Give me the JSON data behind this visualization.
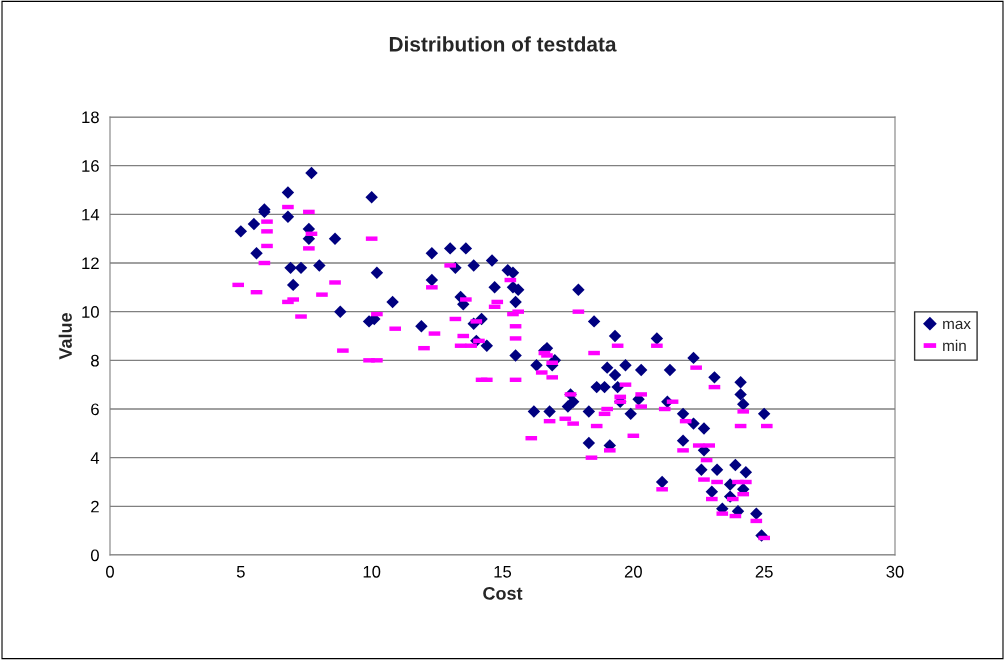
{
  "chart_data": {
    "type": "scatter",
    "title": "Distribution of testdata",
    "xlabel": "Cost",
    "ylabel": "Value",
    "xlim": [
      0,
      30
    ],
    "xticks": [
      0,
      5,
      10,
      15,
      20,
      25,
      30
    ],
    "ylim": [
      0,
      18
    ],
    "yticks": [
      0,
      2,
      4,
      6,
      8,
      10,
      12,
      14,
      16,
      18
    ],
    "grid": "y",
    "legend": "right",
    "series": [
      {
        "name": "max",
        "color": "#000080",
        "marker": "diamond",
        "x": [
          5.0,
          5.5,
          5.6,
          5.9,
          5.9,
          6.8,
          6.8,
          6.9,
          7.0,
          7.3,
          7.6,
          7.6,
          7.7,
          8.0,
          8.6,
          8.8,
          9.9,
          10.0,
          10.1,
          10.2,
          10.8,
          11.9,
          12.3,
          12.3,
          13.0,
          13.2,
          13.4,
          13.5,
          13.6,
          13.9,
          13.9,
          14.0,
          14.2,
          14.4,
          14.6,
          14.7,
          15.2,
          15.4,
          15.4,
          15.5,
          15.6,
          15.5,
          16.2,
          16.3,
          16.6,
          16.7,
          16.8,
          16.9,
          17.0,
          17.5,
          17.6,
          17.7,
          17.9,
          18.3,
          18.3,
          18.5,
          18.6,
          18.9,
          19.0,
          19.1,
          19.3,
          19.3,
          19.4,
          19.5,
          19.7,
          19.9,
          20.2,
          20.3,
          20.9,
          21.1,
          21.3,
          21.4,
          21.9,
          21.9,
          22.3,
          22.3,
          22.6,
          22.7,
          22.7,
          23.0,
          23.1,
          23.2,
          23.4,
          23.7,
          23.7,
          23.9,
          24.0,
          24.1,
          24.1,
          24.2,
          24.2,
          24.3,
          24.7,
          24.9,
          25.0
        ],
        "values": [
          13.3,
          13.6,
          12.4,
          14.1,
          14.2,
          13.9,
          14.9,
          11.8,
          11.1,
          11.8,
          13.4,
          13.0,
          15.7,
          11.9,
          13.0,
          10.0,
          9.6,
          14.7,
          9.7,
          11.6,
          10.4,
          9.4,
          12.4,
          11.3,
          12.6,
          11.8,
          10.6,
          10.3,
          12.6,
          11.9,
          9.5,
          8.8,
          9.7,
          8.6,
          12.1,
          11.0,
          11.7,
          11.6,
          11.0,
          10.4,
          10.9,
          8.2,
          5.9,
          7.8,
          8.4,
          8.5,
          5.9,
          7.8,
          8.0,
          6.1,
          6.6,
          6.3,
          10.9,
          5.9,
          4.6,
          9.6,
          6.9,
          6.9,
          7.7,
          4.5,
          9.0,
          7.4,
          6.9,
          6.3,
          7.8,
          5.8,
          6.4,
          7.6,
          8.9,
          3.0,
          6.3,
          7.6,
          5.8,
          4.7,
          8.1,
          5.4,
          3.5,
          5.2,
          4.3,
          2.6,
          7.3,
          3.5,
          1.9,
          2.9,
          2.4,
          3.7,
          1.8,
          7.1,
          6.6,
          6.2,
          2.7,
          3.4,
          1.7,
          0.8,
          5.8
        ]
      },
      {
        "name": "min",
        "color": "#ff00ff",
        "x": [
          4.9,
          5.6,
          5.9,
          6.0,
          6.0,
          6.0,
          6.8,
          6.8,
          7.0,
          7.3,
          7.6,
          7.6,
          7.7,
          8.1,
          8.6,
          8.9,
          9.9,
          10.0,
          10.2,
          10.2,
          10.9,
          12.0,
          12.3,
          12.4,
          13.0,
          13.2,
          13.4,
          13.5,
          13.6,
          13.8,
          14.0,
          14.1,
          14.2,
          14.4,
          14.7,
          14.8,
          15.3,
          15.4,
          15.5,
          15.5,
          15.6,
          15.5,
          16.1,
          16.5,
          16.7,
          16.6,
          16.8,
          16.9,
          16.9,
          17.4,
          17.6,
          17.7,
          17.9,
          18.4,
          18.5,
          18.6,
          18.9,
          19.0,
          19.1,
          19.4,
          19.5,
          19.5,
          19.7,
          20.0,
          20.3,
          20.3,
          20.9,
          21.1,
          21.2,
          21.5,
          21.9,
          22.0,
          22.4,
          22.5,
          22.7,
          22.8,
          22.9,
          23.0,
          23.1,
          23.2,
          23.4,
          23.8,
          23.9,
          24.0,
          24.1,
          24.2,
          24.2,
          24.3,
          24.7,
          25.0,
          25.1
        ],
        "values": [
          11.1,
          10.8,
          12.0,
          12.7,
          13.7,
          13.3,
          14.3,
          10.4,
          10.5,
          9.8,
          14.1,
          12.6,
          13.2,
          10.7,
          11.2,
          8.4,
          8.0,
          13.0,
          8.0,
          9.9,
          9.3,
          8.5,
          11.0,
          9.1,
          11.9,
          9.7,
          8.6,
          9.0,
          10.5,
          8.6,
          9.6,
          8.8,
          7.2,
          7.2,
          10.2,
          10.4,
          11.3,
          9.9,
          9.4,
          8.9,
          10.0,
          7.2,
          4.8,
          7.5,
          8.2,
          8.3,
          5.5,
          7.9,
          7.3,
          5.6,
          6.6,
          5.4,
          10.0,
          4.0,
          8.3,
          5.3,
          5.8,
          6.0,
          4.3,
          8.6,
          6.5,
          6.3,
          7.0,
          4.9,
          6.6,
          6.1,
          8.6,
          2.7,
          6.0,
          6.3,
          4.3,
          5.5,
          7.7,
          4.5,
          3.1,
          3.9,
          4.5,
          2.3,
          6.9,
          3.0,
          1.7,
          2.3,
          1.6,
          3.0,
          5.3,
          2.5,
          5.9,
          3.0,
          1.4,
          0.7,
          5.3
        ]
      }
    ]
  }
}
